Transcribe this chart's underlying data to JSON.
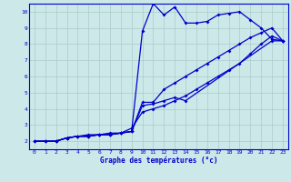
{
  "title": "Graphe des températures (°c)",
  "bg_color": "#cce8e8",
  "grid_color": "#aacccc",
  "line_color": "#0000cc",
  "xlim": [
    -0.5,
    23.5
  ],
  "ylim": [
    1.5,
    10.5
  ],
  "xticks": [
    0,
    1,
    2,
    3,
    4,
    5,
    6,
    7,
    8,
    9,
    10,
    11,
    12,
    13,
    14,
    15,
    16,
    17,
    18,
    19,
    20,
    21,
    22,
    23
  ],
  "yticks": [
    2,
    3,
    4,
    5,
    6,
    7,
    8,
    9,
    10
  ],
  "series1_x": [
    0,
    1,
    2,
    3,
    4,
    5,
    6,
    7,
    8,
    9,
    10,
    11,
    12,
    13,
    14,
    15,
    16,
    17,
    18,
    19,
    20,
    21,
    22,
    23
  ],
  "series1_y": [
    2.0,
    2.0,
    2.0,
    2.2,
    2.3,
    2.3,
    2.4,
    2.4,
    2.5,
    2.6,
    8.8,
    10.5,
    9.8,
    10.3,
    9.3,
    9.3,
    9.4,
    9.8,
    9.9,
    10.0,
    9.5,
    9.0,
    8.3,
    8.2
  ],
  "series2_x": [
    0,
    1,
    2,
    3,
    4,
    5,
    6,
    7,
    8,
    9,
    10,
    11,
    12,
    13,
    14,
    15,
    16,
    17,
    18,
    19,
    20,
    21,
    22,
    23
  ],
  "series2_y": [
    2.0,
    2.0,
    2.0,
    2.2,
    2.3,
    2.3,
    2.4,
    2.4,
    2.5,
    2.6,
    4.4,
    4.4,
    5.2,
    5.6,
    6.0,
    6.4,
    6.8,
    7.2,
    7.6,
    8.0,
    8.4,
    8.7,
    9.0,
    8.2
  ],
  "series3_x": [
    0,
    1,
    2,
    3,
    4,
    5,
    6,
    7,
    8,
    9,
    10,
    11,
    12,
    13,
    14,
    15,
    16,
    17,
    18,
    19,
    20,
    21,
    22,
    23
  ],
  "series3_y": [
    2.0,
    2.0,
    2.0,
    2.2,
    2.3,
    2.3,
    2.4,
    2.4,
    2.5,
    2.8,
    3.8,
    4.0,
    4.2,
    4.5,
    4.8,
    5.2,
    5.6,
    6.0,
    6.4,
    6.8,
    7.4,
    8.0,
    8.5,
    8.2
  ],
  "series4_x": [
    2,
    3,
    4,
    5,
    6,
    7,
    8,
    9,
    10,
    11,
    12,
    13,
    14,
    22,
    23
  ],
  "series4_y": [
    2.0,
    2.2,
    2.3,
    2.4,
    2.4,
    2.5,
    2.5,
    2.6,
    4.2,
    4.3,
    4.5,
    4.7,
    4.5,
    8.2,
    8.2
  ]
}
